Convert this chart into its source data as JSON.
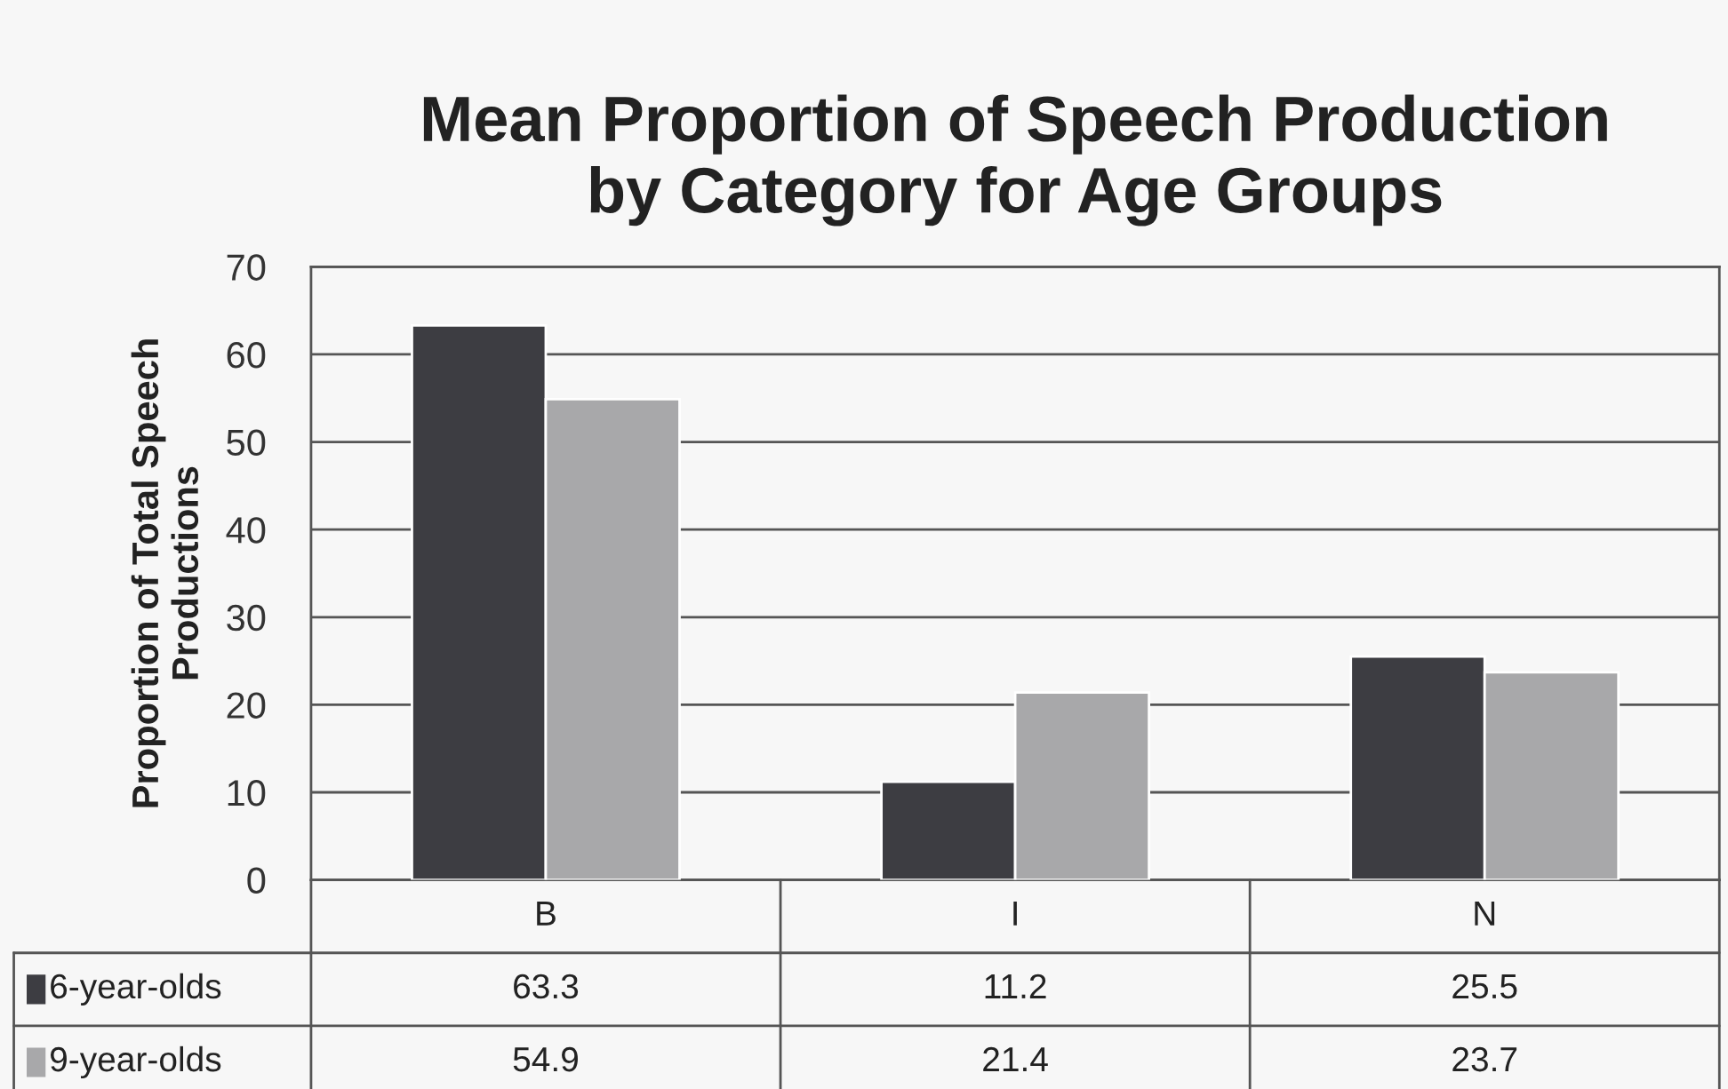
{
  "chart_data": {
    "type": "bar",
    "title": "Mean Proportion of Speech Production\nby Category for Age Groups",
    "ylabel": "Proportion of Total Speech\nProductions",
    "categories": [
      "B",
      "I",
      "N"
    ],
    "series": [
      {
        "name": "6-year-olds",
        "color": "#3d3d42",
        "values": [
          63.3,
          11.2,
          25.5
        ]
      },
      {
        "name": "9-year-olds",
        "color": "#a8a8aa",
        "values": [
          54.9,
          21.4,
          23.7
        ]
      }
    ],
    "ylim": [
      0,
      70
    ],
    "yticks": [
      0,
      10,
      20,
      30,
      40,
      50,
      60,
      70
    ],
    "grid": "y",
    "data_labels": true,
    "legend": "bottom"
  }
}
